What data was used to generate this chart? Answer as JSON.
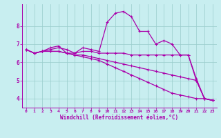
{
  "xlabel": "Windchill (Refroidissement éolien,°C)",
  "xlim": [
    -0.5,
    23.5
  ],
  "ylim": [
    3.5,
    9.2
  ],
  "yticks": [
    4,
    5,
    6,
    7,
    8
  ],
  "xticks": [
    0,
    1,
    2,
    3,
    4,
    5,
    6,
    7,
    8,
    9,
    10,
    11,
    12,
    13,
    14,
    15,
    16,
    17,
    18,
    19,
    20,
    21,
    22,
    23
  ],
  "background_color": "#c8eef0",
  "grid_color": "#99cccc",
  "line_color": "#aa00aa",
  "line_width": 0.9,
  "marker": "+",
  "marker_size": 3,
  "marker_lw": 0.8,
  "series": [
    [
      6.7,
      6.5,
      6.6,
      6.7,
      6.8,
      6.7,
      6.5,
      6.8,
      6.7,
      6.6,
      8.2,
      8.7,
      8.8,
      8.5,
      7.7,
      7.7,
      7.0,
      7.2,
      7.0,
      6.4,
      6.4,
      5.1,
      4.0,
      3.9
    ],
    [
      6.7,
      6.5,
      6.6,
      6.8,
      6.9,
      6.5,
      6.5,
      6.6,
      6.6,
      6.5,
      6.5,
      6.5,
      6.5,
      6.4,
      6.4,
      6.4,
      6.4,
      6.4,
      6.4,
      6.4,
      6.4,
      5.0,
      4.0,
      3.9
    ],
    [
      6.7,
      6.5,
      6.6,
      6.6,
      6.6,
      6.5,
      6.4,
      6.4,
      6.3,
      6.2,
      6.1,
      6.0,
      5.9,
      5.8,
      5.7,
      5.6,
      5.5,
      5.4,
      5.3,
      5.2,
      5.1,
      5.0,
      4.0,
      3.9
    ],
    [
      6.7,
      6.5,
      6.6,
      6.6,
      6.6,
      6.5,
      6.4,
      6.3,
      6.2,
      6.1,
      5.9,
      5.7,
      5.5,
      5.3,
      5.1,
      4.9,
      4.7,
      4.5,
      4.3,
      4.2,
      4.1,
      4.0,
      4.0,
      3.9
    ]
  ]
}
